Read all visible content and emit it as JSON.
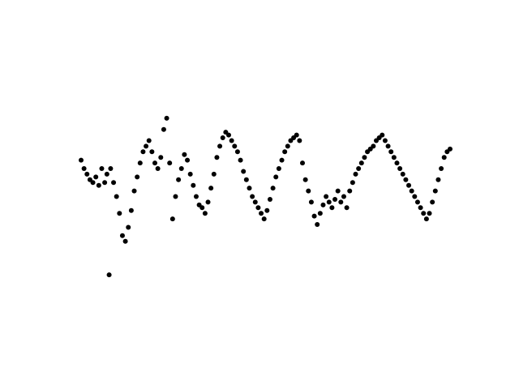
{
  "chart_data": {
    "type": "scatter",
    "title": "",
    "xlabel": "",
    "ylabel": "",
    "axes_visible": false,
    "grid": false,
    "legend": "none",
    "marker_color": "#000000",
    "xlim": [
      0,
      1
    ],
    "ylim": [
      0,
      1
    ],
    "series": [
      {
        "x": [
          0.0,
          0.008,
          0.016,
          0.024,
          0.032,
          0.04,
          0.048,
          0.056,
          0.064,
          0.07,
          0.076,
          0.08,
          0.088,
          0.096,
          0.104,
          0.112,
          0.12,
          0.128,
          0.136,
          0.144,
          0.152,
          0.16,
          0.168,
          0.176,
          0.184,
          0.192,
          0.2,
          0.208,
          0.216,
          0.224,
          0.232,
          0.24,
          0.248,
          0.256,
          0.264,
          0.272,
          0.28,
          0.288,
          0.296,
          0.304,
          0.312,
          0.32,
          0.328,
          0.336,
          0.344,
          0.352,
          0.36,
          0.368,
          0.376,
          0.384,
          0.392,
          0.4,
          0.408,
          0.416,
          0.424,
          0.432,
          0.44,
          0.448,
          0.456,
          0.464,
          0.472,
          0.48,
          0.488,
          0.496,
          0.504,
          0.512,
          0.52,
          0.528,
          0.536,
          0.544,
          0.552,
          0.56,
          0.568,
          0.576,
          0.584,
          0.592,
          0.6,
          0.608,
          0.616,
          0.624,
          0.632,
          0.64,
          0.648,
          0.656,
          0.664,
          0.672,
          0.68,
          0.688,
          0.696,
          0.704,
          0.712,
          0.72,
          0.728,
          0.736,
          0.744,
          0.752,
          0.76,
          0.768,
          0.776,
          0.784,
          0.792,
          0.8,
          0.808,
          0.816,
          0.824,
          0.832,
          0.84,
          0.848,
          0.856,
          0.864,
          0.872,
          0.88,
          0.888,
          0.896,
          0.904,
          0.912,
          0.92,
          0.928,
          0.936,
          0.944,
          0.952,
          0.96,
          0.968,
          0.976,
          0.984,
          0.992,
          1.0
        ],
        "y": [
          0.63,
          0.6,
          0.58,
          0.56,
          0.55,
          0.57,
          0.54,
          0.6,
          0.55,
          0.58,
          0.22,
          0.6,
          0.55,
          0.5,
          0.44,
          0.36,
          0.34,
          0.39,
          0.45,
          0.52,
          0.57,
          0.62,
          0.66,
          0.68,
          0.7,
          0.66,
          0.62,
          0.6,
          0.64,
          0.74,
          0.78,
          0.62,
          0.42,
          0.5,
          0.56,
          0.6,
          0.65,
          0.63,
          0.58,
          0.54,
          0.5,
          0.47,
          0.46,
          0.44,
          0.48,
          0.53,
          0.58,
          0.64,
          0.68,
          0.71,
          0.73,
          0.72,
          0.7,
          0.68,
          0.66,
          0.63,
          0.59,
          0.56,
          0.53,
          0.5,
          0.48,
          0.46,
          0.44,
          0.42,
          0.45,
          0.49,
          0.53,
          0.57,
          0.6,
          0.63,
          0.66,
          0.68,
          0.7,
          0.71,
          0.72,
          0.7,
          0.62,
          0.56,
          0.52,
          0.48,
          0.43,
          0.4,
          0.44,
          0.47,
          0.5,
          0.48,
          0.46,
          0.49,
          0.52,
          0.48,
          0.5,
          0.46,
          0.52,
          0.55,
          0.58,
          0.6,
          0.62,
          0.64,
          0.66,
          0.67,
          0.68,
          0.7,
          0.71,
          0.72,
          0.7,
          0.68,
          0.66,
          0.64,
          0.62,
          0.6,
          0.58,
          0.56,
          0.54,
          0.52,
          0.5,
          0.48,
          0.46,
          0.44,
          0.42,
          0.44,
          0.48,
          0.52,
          0.56,
          0.6,
          0.64,
          0.66,
          0.67
        ]
      }
    ]
  }
}
